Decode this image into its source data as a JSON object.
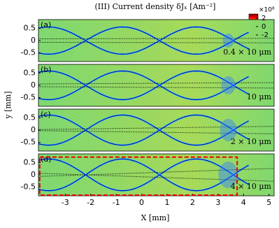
{
  "chart_data": [
    {
      "type": "heatmap",
      "panel": "(a)",
      "annotation": "0.4 × 10 μm",
      "xlim": [
        -4.05,
        5.2
      ],
      "ylim": [
        -0.85,
        0.85
      ],
      "yticks": [
        0.5,
        0,
        -0.5
      ]
    },
    {
      "type": "heatmap",
      "panel": "(b)",
      "annotation": "10 μm",
      "xlim": [
        -4.05,
        5.2
      ],
      "ylim": [
        -0.85,
        0.85
      ],
      "yticks": [
        0.5,
        0,
        -0.5
      ]
    },
    {
      "type": "heatmap",
      "panel": "(c)",
      "annotation": "2 × 10 μm",
      "xlim": [
        -4.05,
        5.2
      ],
      "ylim": [
        -0.85,
        0.85
      ],
      "yticks": [
        0.5,
        0,
        -0.5
      ]
    },
    {
      "type": "heatmap",
      "panel": "(d)",
      "annotation": "4 × 10 μm",
      "xlim": [
        -4.05,
        5.2
      ],
      "ylim": [
        -0.85,
        0.85
      ],
      "yticks": [
        0.5,
        0,
        -0.5
      ],
      "xticks": [
        -3,
        -2,
        -1,
        0,
        1,
        2,
        3,
        4,
        5
      ]
    }
  ],
  "title": "(III) Current density δJₓ [Am⁻²]",
  "ylabel": "y [mm]",
  "xlabel": "X [mm]",
  "colorbar": {
    "clim": [
      -3,
      3
    ],
    "ticks": [
      2,
      0,
      -2
    ],
    "exponent": "×10⁸"
  }
}
